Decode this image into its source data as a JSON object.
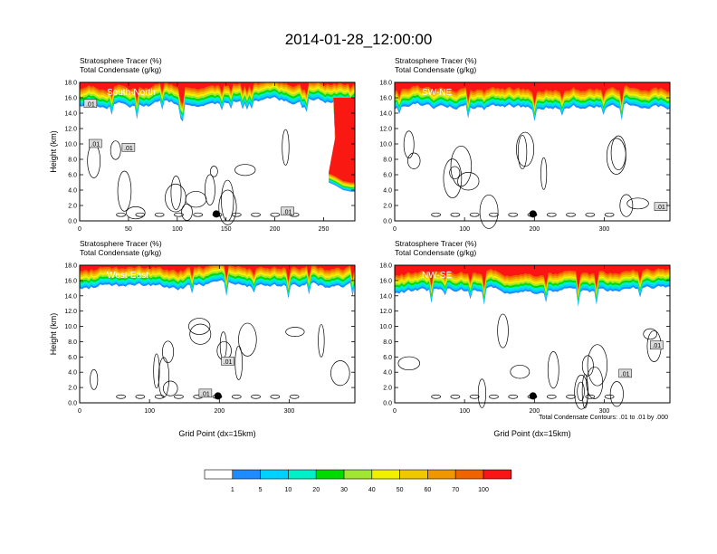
{
  "figure": {
    "title": "2014-01-28_12:00:00",
    "note": "Total Condensate Contours: .01 to .01 by .000"
  },
  "colors": {
    "levels": [
      "#ffffff",
      "#1e8cff",
      "#00d2ff",
      "#00f0c8",
      "#00dc00",
      "#a0e632",
      "#f0f000",
      "#f0c800",
      "#f09600",
      "#f06400",
      "#fa1414"
    ],
    "contour": "#000000",
    "label_bg": "#dcdcdc"
  },
  "colorbar": {
    "labels": [
      "1",
      "5",
      "10",
      "20",
      "30",
      "40",
      "50",
      "60",
      "70",
      "100"
    ]
  },
  "chart_data": [
    {
      "type": "heatmap",
      "name": "South-North",
      "header_line1": "Stratosphere Tracer   (%)",
      "header_line2": "Total Condensate   (g/kg)",
      "ylabel": "Height (km)",
      "xlabel": "",
      "xlim": [
        0,
        282
      ],
      "ylim": [
        0,
        18
      ],
      "xticks": [
        0,
        50,
        100,
        150,
        200,
        250
      ],
      "yticks": [
        "0.0",
        "2.0",
        "4.0",
        "6.0",
        "8.0",
        "10.0",
        "12.0",
        "14.0",
        "16.0",
        "18.0"
      ],
      "tracer_base_km": 15.2,
      "dot": {
        "x": 140,
        "y": 0.9
      },
      "contour_labels": [
        {
          "text": ".01",
          "x": 11,
          "y": 15.2
        },
        {
          "text": ".01",
          "x": 16,
          "y": 10.0
        },
        {
          "text": ".01",
          "x": 50,
          "y": 9.5
        },
        {
          "text": ".01",
          "x": 213,
          "y": 1.2
        }
      ]
    },
    {
      "type": "heatmap",
      "name": "SW-NE",
      "header_line1": "Stratosphere Tracer   (%)",
      "header_line2": "Total Condensate   (g/kg)",
      "ylabel": "",
      "xlabel": "",
      "xlim": [
        0,
        394
      ],
      "ylim": [
        0,
        18
      ],
      "xticks": [
        0,
        100,
        200,
        300
      ],
      "yticks": [
        "0.0",
        "2.0",
        "4.0",
        "6.0",
        "8.0",
        "10.0",
        "12.0",
        "14.0",
        "16.0",
        "18.0"
      ],
      "tracer_base_km": 14.8,
      "dot": {
        "x": 198,
        "y": 0.9
      },
      "contour_labels": [
        {
          "text": ".01",
          "x": 381,
          "y": 1.8
        }
      ]
    },
    {
      "type": "heatmap",
      "name": "West-East",
      "header_line1": "Stratosphere Tracer   (%)",
      "header_line2": "Total Condensate   (g/kg)",
      "ylabel": "Height (km)",
      "xlabel": "Grid Point (dx=15km)",
      "xlim": [
        0,
        394
      ],
      "ylim": [
        0,
        18
      ],
      "xticks": [
        0,
        100,
        200,
        300
      ],
      "yticks": [
        "0.0",
        "2.0",
        "4.0",
        "6.0",
        "8.0",
        "10.0",
        "12.0",
        "14.0",
        "16.0",
        "18.0"
      ],
      "tracer_base_km": 15.3,
      "dot": {
        "x": 198,
        "y": 0.9
      },
      "contour_labels": [
        {
          "text": ".01",
          "x": 212,
          "y": 5.4
        },
        {
          "text": ".01",
          "x": 180,
          "y": 1.2
        }
      ]
    },
    {
      "type": "heatmap",
      "name": "NW-SE",
      "header_line1": "Stratosphere Tracer   (%)",
      "header_line2": "Total Condensate   (g/kg)",
      "ylabel": "",
      "xlabel": "Grid Point (dx=15km)",
      "xlim": [
        0,
        394
      ],
      "ylim": [
        0,
        18
      ],
      "xticks": [
        0,
        100,
        200,
        300
      ],
      "yticks": [
        "0.0",
        "2.0",
        "4.0",
        "6.0",
        "8.0",
        "10.0",
        "12.0",
        "14.0",
        "16.0",
        "18.0"
      ],
      "tracer_base_km": 14.6,
      "dot": {
        "x": 198,
        "y": 0.9
      },
      "contour_labels": [
        {
          "text": ".01",
          "x": 375,
          "y": 7.5
        },
        {
          "text": ".01",
          "x": 330,
          "y": 3.8
        }
      ]
    }
  ]
}
